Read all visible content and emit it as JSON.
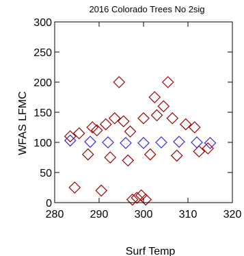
{
  "chart_data": {
    "type": "scatter",
    "title": "2016 Colorado Trees No 2sig",
    "xlabel": "Surf Temp",
    "ylabel": "WFAS LFMC",
    "xlim": [
      280,
      320
    ],
    "ylim": [
      0,
      300
    ],
    "xticks": [
      "280",
      "290",
      "300",
      "310",
      "320"
    ],
    "yticks": [
      "0",
      "50",
      "100",
      "150",
      "200",
      "250",
      "300"
    ],
    "grid": false,
    "legend": "none",
    "colors": {
      "observed": "#a00000",
      "modeled": "#3a1ee8"
    },
    "series": [
      {
        "marker": "diamond-open",
        "color": "#a00000",
        "points": [
          [
            284.5,
            25
          ],
          [
            290.5,
            20
          ],
          [
            294.5,
            200
          ],
          [
            302.5,
            175
          ],
          [
            305.5,
            200
          ],
          [
            304.5,
            160
          ],
          [
            297.5,
            5
          ],
          [
            298.5,
            8
          ],
          [
            300.5,
            5
          ],
          [
            299.5,
            12
          ],
          [
            291.5,
            130
          ],
          [
            293.5,
            140
          ],
          [
            288.5,
            125
          ],
          [
            295.5,
            135
          ],
          [
            300.0,
            140
          ],
          [
            306.5,
            140
          ],
          [
            303.0,
            145
          ],
          [
            309.5,
            130
          ],
          [
            311.5,
            125
          ],
          [
            285.5,
            115
          ],
          [
            287.5,
            80
          ],
          [
            292.5,
            75
          ],
          [
            296.5,
            70
          ],
          [
            301.5,
            80
          ],
          [
            307.5,
            78
          ],
          [
            312.5,
            85
          ],
          [
            314.5,
            90
          ],
          [
            283.5,
            110
          ],
          [
            289.5,
            120
          ],
          [
            297.0,
            118
          ]
        ]
      },
      {
        "marker": "diamond-open",
        "color": "#3a1ee8",
        "points": [
          [
            283.5,
            103
          ],
          [
            288.0,
            101
          ],
          [
            292.0,
            100
          ],
          [
            296.0,
            99
          ],
          [
            300.0,
            99
          ],
          [
            304.0,
            100
          ],
          [
            308.0,
            101
          ],
          [
            312.0,
            100
          ],
          [
            315.0,
            99
          ]
        ]
      }
    ]
  }
}
